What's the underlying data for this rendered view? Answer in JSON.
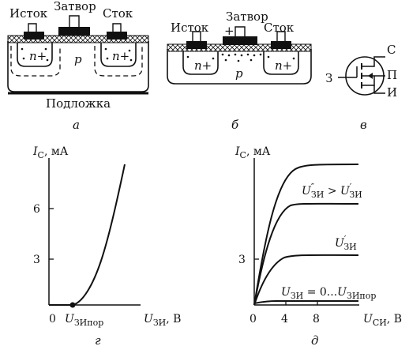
{
  "panel_a": {
    "source": "Исток",
    "gate": "Затвор",
    "drain": "Сток",
    "n_left": "n+",
    "n_right": "n+",
    "body": "p",
    "substrate": "Подложка",
    "caption": "а"
  },
  "panel_b": {
    "source": "Исток",
    "gate": "Затвор",
    "plus": "+",
    "drain": "Сток",
    "n_left": "n+",
    "n_right": "n+",
    "body": "p",
    "caption": "б"
  },
  "panel_v": {
    "pin_drain": "С",
    "pin_body": "П",
    "pin_source": "И",
    "pin_gate": "З",
    "caption": "в"
  },
  "chart_g": {
    "type": "line",
    "ylabel_main": "I",
    "ylabel_sub": "С",
    "ylabel_unit": ", мА",
    "xlabel_main": "U",
    "xlabel_sub": "ЗИ",
    "xlabel_unit": ", В",
    "y_ticks": [
      "6",
      "3"
    ],
    "origin_label": "0",
    "threshold_main": "U",
    "threshold_sub": "ЗИпор",
    "caption": "г"
  },
  "chart_d": {
    "type": "line",
    "ylabel_main": "I",
    "ylabel_sub": "С",
    "ylabel_unit": ", мА",
    "xlabel_main": "U",
    "xlabel_sub": "СИ",
    "xlabel_unit": ", В",
    "y_ticks": [
      "3"
    ],
    "x_ticks": [
      "0",
      "4",
      "8"
    ],
    "curve_label_top_main1": "U",
    "curve_label_top_sup1": "″",
    "curve_label_top_sub1": "ЗИ",
    "curve_label_top_op": " > ",
    "curve_label_top_main2": "U",
    "curve_label_top_sup2": "′",
    "curve_label_top_sub2": "ЗИ",
    "curve_label_mid_main": "U",
    "curve_label_mid_sup": "′",
    "curve_label_mid_sub": "ЗИ",
    "curve_label_low_main": "U",
    "curve_label_low_sub": "ЗИ",
    "curve_label_low_text": " = 0...",
    "curve_label_low_main2": "U",
    "curve_label_low_sub2": "ЗИпор",
    "caption": "д"
  }
}
